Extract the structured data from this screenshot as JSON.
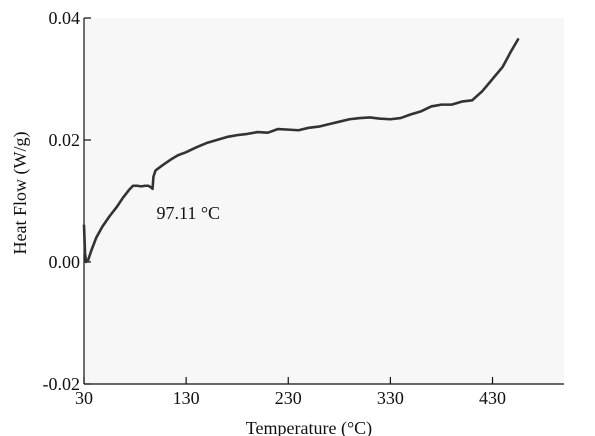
{
  "chart_data": {
    "type": "line",
    "title": "",
    "xlabel": "Temperature (°C)",
    "ylabel": "Heat Flow (W/g)",
    "xlim": [
      30,
      500
    ],
    "ylim": [
      -0.02,
      0.04
    ],
    "xticks": [
      30,
      130,
      230,
      330,
      430
    ],
    "xtick_labels": [
      "30",
      "130",
      "230",
      "330",
      "430"
    ],
    "yticks": [
      -0.02,
      0.0,
      0.02,
      0.04
    ],
    "ytick_labels": [
      "-0.02",
      "0.00",
      "0.02",
      "0.04"
    ],
    "grid": false,
    "legend": "none",
    "line_color": "#333333",
    "series": [
      {
        "x": [
          30,
          31,
          32,
          34,
          37,
          42,
          48,
          55,
          62,
          68,
          74,
          78,
          82,
          86,
          90,
          93,
          96,
          97.11,
          98,
          100,
          104,
          108,
          115,
          122,
          130,
          140,
          150,
          160,
          170,
          180,
          190,
          200,
          210,
          220,
          230,
          240,
          250,
          260,
          270,
          280,
          290,
          300,
          310,
          320,
          330,
          340,
          350,
          360,
          370,
          380,
          390,
          400,
          410,
          420,
          430,
          440,
          448,
          455
        ],
        "y": [
          0.006,
          0.0015,
          0.0,
          0.0003,
          0.0018,
          0.004,
          0.0058,
          0.0075,
          0.009,
          0.0105,
          0.0118,
          0.0125,
          0.0125,
          0.0124,
          0.0125,
          0.0125,
          0.0122,
          0.012,
          0.014,
          0.015,
          0.0155,
          0.016,
          0.0168,
          0.0175,
          0.018,
          0.0188,
          0.0195,
          0.02,
          0.0205,
          0.0208,
          0.021,
          0.0213,
          0.0212,
          0.0218,
          0.0217,
          0.0216,
          0.022,
          0.0222,
          0.0226,
          0.023,
          0.0234,
          0.0236,
          0.0237,
          0.0235,
          0.0234,
          0.0236,
          0.0242,
          0.0247,
          0.0255,
          0.0258,
          0.0258,
          0.0263,
          0.0265,
          0.028,
          0.03,
          0.032,
          0.0345,
          0.0365
        ]
      }
    ],
    "annotations": [
      {
        "text": "97.11 °C",
        "x": 97.11,
        "y": 0.012
      }
    ]
  }
}
